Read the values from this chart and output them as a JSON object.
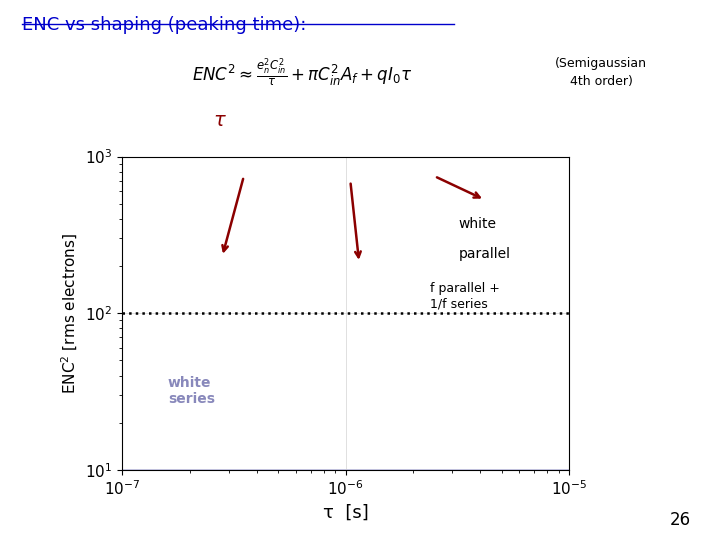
{
  "title": "ENC vs shaping (peaking time):",
  "title_color": "#0000CC",
  "xlabel": "τ  [s]",
  "ylabel": "ENC$^2$ [rms electrons]",
  "background_color": "#ffffff",
  "shaded_color": "#c8c8e8",
  "slide_number": "26",
  "semigaussian_line1": "(Semigaussian",
  "semigaussian_line2": "4th order)",
  "white_label": "white",
  "parallel_label": "parallel",
  "f_parallel_label": "f parallel +\n1/f series",
  "white_series_label": "white\nseries",
  "tau_label": "τ",
  "formula": "$ENC^2 \\approx \\frac{e_n^2 C_{in}^2}{\\tau} + \\pi C_{in}^2 A_f + q I_0 \\tau$"
}
